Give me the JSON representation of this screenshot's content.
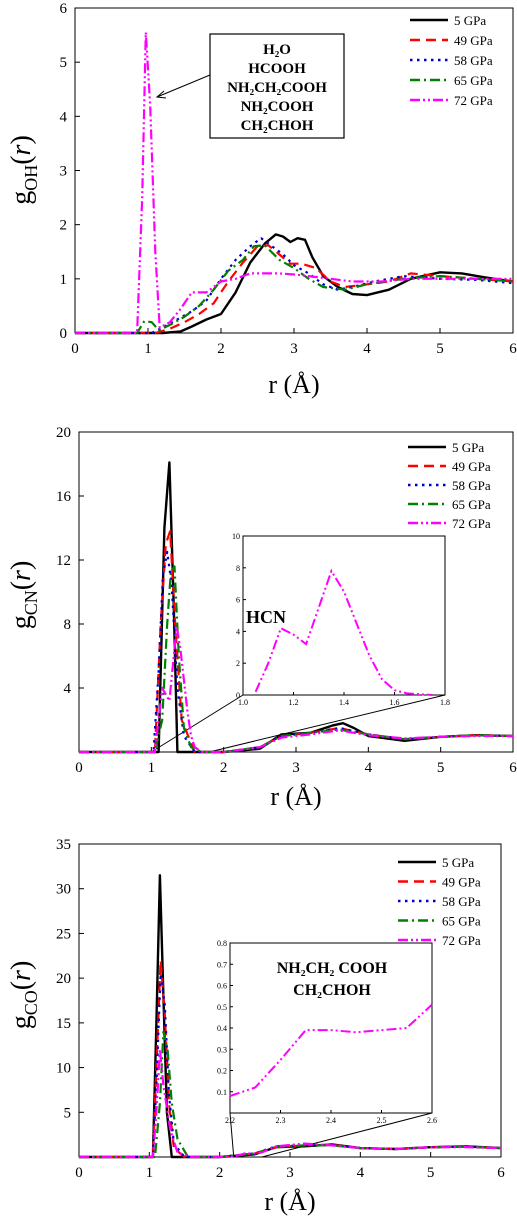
{
  "chart_data": [
    {
      "type": "line",
      "panel": "top",
      "xlabel": "r (Å)",
      "ylabel": "g_OH(r)",
      "xlim": [
        0,
        6
      ],
      "ylim": [
        0,
        6
      ],
      "xticks": [
        0,
        1,
        2,
        3,
        4,
        5,
        6
      ],
      "yticks": [
        0,
        1,
        2,
        3,
        4,
        5,
        6
      ],
      "grid": false,
      "legend_position": "top-right",
      "callout_lines": [
        "H₂O",
        "HCOOH",
        "NH₂CH₂COOH",
        "NH₂COOH",
        "CH₂CHOH"
      ],
      "series": [
        {
          "name": "5 GPa",
          "color": "#000000",
          "dash": "solid",
          "x": [
            0,
            1.2,
            1.45,
            1.6,
            1.8,
            2.0,
            2.2,
            2.4,
            2.6,
            2.75,
            2.85,
            2.95,
            3.05,
            3.15,
            3.25,
            3.4,
            3.6,
            3.8,
            4.0,
            4.3,
            4.6,
            5.0,
            5.3,
            5.6,
            6.0
          ],
          "y": [
            0,
            0,
            0.03,
            0.12,
            0.25,
            0.35,
            0.75,
            1.3,
            1.65,
            1.82,
            1.78,
            1.68,
            1.75,
            1.72,
            1.4,
            1.05,
            0.85,
            0.72,
            0.7,
            0.8,
            1.0,
            1.12,
            1.1,
            1.03,
            0.95
          ]
        },
        {
          "name": "49 GPa",
          "color": "#ff0000",
          "dash": "dashed",
          "x": [
            0,
            1.1,
            1.3,
            1.5,
            1.7,
            1.9,
            2.1,
            2.3,
            2.5,
            2.65,
            2.8,
            2.95,
            3.1,
            3.3,
            3.5,
            3.7,
            4.0,
            4.3,
            4.6,
            5.0,
            5.5,
            6.0
          ],
          "y": [
            0,
            0,
            0.08,
            0.2,
            0.35,
            0.55,
            0.95,
            1.3,
            1.6,
            1.62,
            1.45,
            1.28,
            1.28,
            1.2,
            0.95,
            0.85,
            0.9,
            0.95,
            1.1,
            1.05,
            1.0,
            0.95
          ]
        },
        {
          "name": "58 GPa",
          "color": "#0000cc",
          "dash": "dotted",
          "x": [
            0,
            1.05,
            1.2,
            1.4,
            1.6,
            1.8,
            2.0,
            2.2,
            2.4,
            2.55,
            2.7,
            2.85,
            3.0,
            3.2,
            3.4,
            3.6,
            3.8,
            4.1,
            4.5,
            5.0,
            5.5,
            6.0
          ],
          "y": [
            0,
            0,
            0.1,
            0.25,
            0.4,
            0.6,
            1.0,
            1.35,
            1.6,
            1.75,
            1.6,
            1.45,
            1.25,
            1.1,
            0.9,
            0.8,
            0.85,
            0.95,
            1.05,
            1.0,
            0.98,
            0.92
          ]
        },
        {
          "name": "65 GPa",
          "color": "#008000",
          "dash": "dashdot",
          "x": [
            0,
            0.85,
            0.95,
            1.05,
            1.15,
            1.3,
            1.5,
            1.7,
            1.9,
            2.1,
            2.3,
            2.45,
            2.6,
            2.8,
            3.0,
            3.2,
            3.4,
            3.7,
            4.0,
            4.5,
            5.0,
            5.5,
            6.0
          ],
          "y": [
            0,
            0,
            0.22,
            0.2,
            0.05,
            0.15,
            0.3,
            0.5,
            0.8,
            1.15,
            1.35,
            1.6,
            1.62,
            1.35,
            1.2,
            1.0,
            0.85,
            0.8,
            0.9,
            1.0,
            1.05,
            1.0,
            0.95
          ]
        },
        {
          "name": "72 GPa",
          "color": "#ff00ff",
          "dash": "dashdotdot",
          "x": [
            0,
            0.85,
            0.92,
            0.97,
            1.03,
            1.1,
            1.16,
            1.3,
            1.45,
            1.6,
            1.8,
            2.0,
            2.2,
            2.4,
            2.6,
            2.8,
            3.0,
            3.2,
            3.5,
            3.8,
            4.2,
            4.6,
            5.0,
            5.5,
            6.0
          ],
          "y": [
            0,
            0,
            2.5,
            5.55,
            4.2,
            1.5,
            0.1,
            0.2,
            0.45,
            0.75,
            0.75,
            0.95,
            1.0,
            1.1,
            1.1,
            1.1,
            1.08,
            1.05,
            1.0,
            0.95,
            0.95,
            1.0,
            1.0,
            1.0,
            1.0
          ]
        }
      ]
    },
    {
      "type": "line",
      "panel": "middle",
      "xlabel": "r (Å)",
      "ylabel": "g_CN(r)",
      "xlim": [
        0,
        6
      ],
      "ylim": [
        0,
        20
      ],
      "xticks": [
        0,
        1,
        2,
        3,
        4,
        5,
        6
      ],
      "yticks": [
        4,
        8,
        12,
        16,
        20
      ],
      "grid": false,
      "legend_position": "top-right",
      "inset": {
        "label": "HCN",
        "xlim": [
          1.0,
          1.8
        ],
        "ylim": [
          0,
          10
        ],
        "xticks": [
          1.0,
          1.2,
          1.4,
          1.6,
          1.8
        ],
        "yticks": [
          0,
          2,
          4,
          6,
          8,
          10
        ],
        "series": {
          "name": "72 GPa",
          "color": "#ff00ff",
          "x": [
            1.05,
            1.1,
            1.15,
            1.2,
            1.25,
            1.3,
            1.35,
            1.4,
            1.45,
            1.5,
            1.55,
            1.6,
            1.65,
            1.7,
            1.75
          ],
          "y": [
            0.2,
            2.0,
            4.2,
            3.8,
            3.2,
            5.5,
            7.8,
            6.5,
            4.5,
            2.5,
            1.0,
            0.3,
            0.1,
            0.05,
            0
          ]
        }
      },
      "series": [
        {
          "name": "5 GPa",
          "color": "#000000",
          "dash": "solid",
          "x": [
            0,
            1.1,
            1.18,
            1.25,
            1.31,
            1.36,
            1.5,
            2.0,
            2.5,
            2.8,
            3.2,
            3.5,
            3.65,
            3.8,
            4.0,
            4.5,
            5.0,
            5.5,
            6.0
          ],
          "y": [
            0,
            0,
            14,
            18.1,
            9,
            0,
            0,
            0,
            0.2,
            1.1,
            1.2,
            1.65,
            1.8,
            1.5,
            1.0,
            0.7,
            0.95,
            1.05,
            1.0
          ]
        },
        {
          "name": "49 GPa",
          "color": "#ff0000",
          "dash": "dashed",
          "x": [
            0,
            1.05,
            1.13,
            1.2,
            1.26,
            1.33,
            1.42,
            1.6,
            2.0,
            2.5,
            2.8,
            3.2,
            3.6,
            4.0,
            4.5,
            5.0,
            5.5,
            6.0
          ],
          "y": [
            0,
            0,
            8,
            13,
            13.8,
            8,
            2,
            0,
            0,
            0.3,
            1.0,
            1.2,
            1.5,
            1.1,
            0.8,
            0.95,
            1.05,
            1.0
          ]
        },
        {
          "name": "58 GPa",
          "color": "#0000cc",
          "dash": "dotted",
          "x": [
            0,
            1.03,
            1.1,
            1.16,
            1.22,
            1.28,
            1.36,
            1.45,
            1.6,
            2.0,
            2.5,
            2.8,
            3.2,
            3.6,
            4.0,
            4.5,
            5.0,
            5.5,
            6.0
          ],
          "y": [
            0,
            0,
            5,
            11,
            12.5,
            10.5,
            4,
            1,
            0,
            0,
            0.3,
            1.0,
            1.2,
            1.5,
            1.1,
            0.8,
            0.95,
            1.05,
            1.0
          ]
        },
        {
          "name": "65 GPa",
          "color": "#008000",
          "dash": "dashdot",
          "x": [
            0,
            1.05,
            1.15,
            1.22,
            1.27,
            1.32,
            1.38,
            1.45,
            1.55,
            1.7,
            2.0,
            2.5,
            2.8,
            3.2,
            3.6,
            4.0,
            4.5,
            5.0,
            5.5,
            6.0
          ],
          "y": [
            0,
            0,
            2,
            8,
            11.3,
            11.6,
            6,
            1.5,
            0.3,
            0,
            0,
            0.3,
            1.0,
            1.2,
            1.4,
            1.1,
            0.8,
            0.95,
            1.05,
            1.0
          ]
        },
        {
          "name": "72 GPa",
          "color": "#ff00ff",
          "dash": "dashdotdot",
          "x": [
            0,
            1.05,
            1.1,
            1.15,
            1.2,
            1.25,
            1.3,
            1.35,
            1.4,
            1.45,
            1.5,
            1.55,
            1.6,
            1.7,
            2.0,
            2.5,
            2.8,
            3.2,
            3.6,
            4.0,
            4.5,
            5.0,
            5.5,
            6.0
          ],
          "y": [
            0,
            0,
            2,
            4,
            3.6,
            3.2,
            5.5,
            7.8,
            6.5,
            4.5,
            2.5,
            1.0,
            0.3,
            0,
            0,
            0.3,
            0.9,
            1.1,
            1.35,
            1.05,
            0.85,
            0.95,
            1.0,
            1.0
          ]
        }
      ]
    },
    {
      "type": "line",
      "panel": "bottom",
      "xlabel": "r (Å)",
      "ylabel": "g_CO(r)",
      "xlim": [
        0,
        6
      ],
      "ylim": [
        0,
        35
      ],
      "xticks": [
        0,
        1,
        2,
        3,
        4,
        5,
        6
      ],
      "yticks": [
        5,
        10,
        15,
        20,
        25,
        30,
        35
      ],
      "grid": false,
      "legend_position": "top-right",
      "inset": {
        "label_lines": [
          "NH₂CH₂ COOH",
          "CH₂CHOH"
        ],
        "xlim": [
          2.2,
          2.6
        ],
        "ylim": [
          0.0,
          0.8
        ],
        "xticks": [
          2.2,
          2.3,
          2.4,
          2.5,
          2.6
        ],
        "yticks": [
          0.1,
          0.2,
          0.3,
          0.4,
          0.5,
          0.6,
          0.7,
          0.8
        ],
        "series": {
          "name": "72 GPa",
          "color": "#ff00ff",
          "x": [
            2.2,
            2.25,
            2.3,
            2.35,
            2.4,
            2.45,
            2.5,
            2.55,
            2.6
          ],
          "y": [
            0.08,
            0.12,
            0.25,
            0.39,
            0.39,
            0.38,
            0.39,
            0.4,
            0.51
          ]
        }
      },
      "series": [
        {
          "name": "5 GPa",
          "color": "#000000",
          "dash": "solid",
          "x": [
            0,
            1.05,
            1.1,
            1.15,
            1.2,
            1.25,
            1.32,
            1.4,
            2.0,
            2.5,
            2.8,
            3.2,
            3.6,
            4.0,
            4.5,
            5.0,
            5.5,
            6.0
          ],
          "y": [
            0,
            0,
            15,
            31.5,
            18,
            5,
            0,
            0,
            0,
            0.3,
            1.1,
            1.2,
            1.4,
            1.0,
            0.9,
            1.1,
            1.2,
            1.0
          ]
        },
        {
          "name": "49 GPa",
          "color": "#ff0000",
          "dash": "dashed",
          "x": [
            0,
            1.05,
            1.1,
            1.16,
            1.22,
            1.28,
            1.35,
            1.5,
            2.0,
            2.5,
            2.8,
            3.2,
            3.6,
            4.0,
            4.5,
            5.0,
            5.5,
            6.0
          ],
          "y": [
            0,
            0,
            10,
            22,
            16,
            6,
            1,
            0,
            0,
            0.4,
            1.1,
            1.3,
            1.35,
            1.0,
            0.9,
            1.1,
            1.15,
            1.0
          ]
        },
        {
          "name": "58 GPa",
          "color": "#0000cc",
          "dash": "dotted",
          "x": [
            0,
            1.05,
            1.1,
            1.16,
            1.22,
            1.28,
            1.35,
            1.5,
            2.0,
            2.5,
            2.8,
            3.2,
            3.6,
            4.0,
            4.5,
            5.0,
            5.5,
            6.0
          ],
          "y": [
            0,
            0,
            8,
            20.5,
            17,
            7,
            1.5,
            0,
            0,
            0.4,
            1.2,
            1.3,
            1.35,
            1.0,
            0.9,
            1.1,
            1.15,
            1.0
          ]
        },
        {
          "name": "65 GPa",
          "color": "#008000",
          "dash": "dashdot",
          "x": [
            0,
            1.08,
            1.15,
            1.2,
            1.26,
            1.32,
            1.4,
            1.55,
            2.0,
            2.5,
            2.8,
            3.2,
            3.6,
            4.0,
            4.5,
            5.0,
            5.5,
            6.0
          ],
          "y": [
            0,
            0,
            6,
            14,
            12,
            6,
            2,
            0,
            0,
            0.4,
            1.1,
            1.3,
            1.3,
            1.0,
            0.9,
            1.1,
            1.15,
            1.0
          ]
        },
        {
          "name": "72 GPa",
          "color": "#ff00ff",
          "dash": "dashdotdot",
          "x": [
            0,
            1.05,
            1.1,
            1.15,
            1.2,
            1.3,
            1.4,
            1.6,
            2.0,
            2.2,
            2.3,
            2.35,
            2.5,
            2.6,
            2.8,
            3.2,
            3.6,
            4.0,
            4.5,
            5.0,
            5.5,
            6.0
          ],
          "y": [
            0,
            0,
            5,
            12,
            8,
            3,
            0.5,
            0,
            0,
            0.08,
            0.25,
            0.39,
            0.39,
            0.51,
            1.2,
            1.5,
            1.3,
            1.0,
            0.9,
            1.1,
            1.1,
            1.0
          ]
        }
      ]
    }
  ]
}
